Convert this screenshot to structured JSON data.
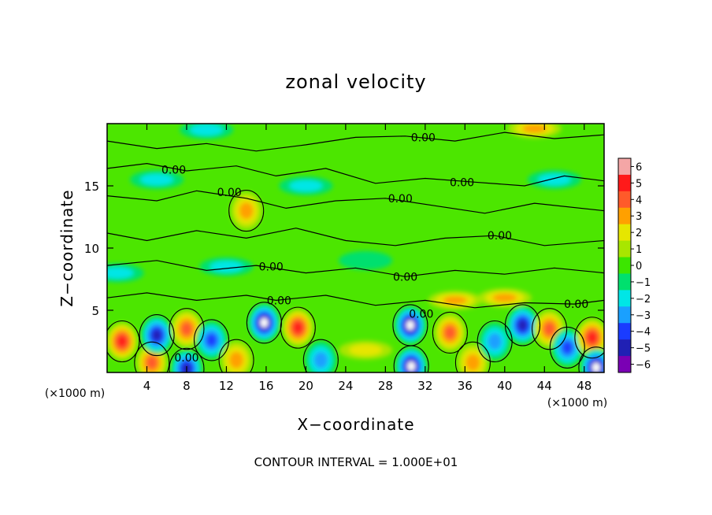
{
  "chart_data": {
    "type": "heatmap",
    "title": "zonal velocity",
    "xlabel": "X−coordinate",
    "ylabel": "Z−coordinate",
    "x_unit": "(×1000 m)",
    "z_unit": "(×1000 m)",
    "xlim": [
      0,
      50
    ],
    "ylim": [
      0,
      20
    ],
    "x_ticks": [
      4,
      8,
      12,
      16,
      20,
      24,
      28,
      32,
      36,
      40,
      44,
      48
    ],
    "y_ticks": [
      5,
      10,
      15
    ],
    "colorbar": {
      "ticks": [
        6,
        5,
        4,
        3,
        2,
        1,
        0,
        -1,
        -2,
        -3,
        -4,
        -5,
        -6
      ],
      "tick_labels": [
        "6",
        "5",
        "4",
        "3",
        "2",
        "1",
        "0",
        "−1",
        "−2",
        "−3",
        "−4",
        "−5",
        "−6"
      ],
      "colors": [
        "#f4a6a6",
        "#ff1a1a",
        "#ff5a2a",
        "#ffa000",
        "#e6e600",
        "#a8e600",
        "#3ce600",
        "#00e06e",
        "#00e6e6",
        "#1aa0ff",
        "#1a3cff",
        "#2020b4",
        "#7a00b4"
      ]
    },
    "contour_label": "0.00",
    "contour_interval_text": "CONTOUR INTERVAL = 1.000E+01",
    "contour_label_positions": [
      {
        "x": 31.8,
        "z": 18.9
      },
      {
        "x": 6.7,
        "z": 16.3
      },
      {
        "x": 35.7,
        "z": 15.3
      },
      {
        "x": 12.3,
        "z": 14.5
      },
      {
        "x": 29.5,
        "z": 14.0
      },
      {
        "x": 39.5,
        "z": 11.0
      },
      {
        "x": 16.5,
        "z": 8.5
      },
      {
        "x": 30.0,
        "z": 7.7
      },
      {
        "x": 17.3,
        "z": 5.8
      },
      {
        "x": 47.2,
        "z": 5.5
      },
      {
        "x": 31.6,
        "z": 4.7
      },
      {
        "x": 8.0,
        "z": 1.2
      }
    ],
    "features": [
      {
        "x": 1.5,
        "z": 2.5,
        "v": 4.5
      },
      {
        "x": 4.5,
        "z": 0.8,
        "v": 4
      },
      {
        "x": 5.0,
        "z": 3.0,
        "v": -5
      },
      {
        "x": 8.0,
        "z": 3.5,
        "v": 4
      },
      {
        "x": 10.5,
        "z": 2.6,
        "v": -4
      },
      {
        "x": 8.0,
        "z": 0.3,
        "v": -5
      },
      {
        "x": 13.0,
        "z": 1.0,
        "v": 3
      },
      {
        "x": 15.8,
        "z": 4.0,
        "v": -6
      },
      {
        "x": 19.2,
        "z": 3.6,
        "v": 4.5
      },
      {
        "x": 21.5,
        "z": 1.0,
        "v": -3
      },
      {
        "x": 26.0,
        "z": 1.8,
        "v": 2
      },
      {
        "x": 30.5,
        "z": 3.8,
        "v": -6
      },
      {
        "x": 34.5,
        "z": 3.2,
        "v": 4
      },
      {
        "x": 30.6,
        "z": 0.5,
        "v": -6
      },
      {
        "x": 36.8,
        "z": 0.8,
        "v": 3
      },
      {
        "x": 39.0,
        "z": 2.5,
        "v": -3
      },
      {
        "x": 41.8,
        "z": 3.8,
        "v": -5
      },
      {
        "x": 44.5,
        "z": 3.5,
        "v": 4
      },
      {
        "x": 46.3,
        "z": 2.0,
        "v": -4
      },
      {
        "x": 48.8,
        "z": 2.8,
        "v": 5
      },
      {
        "x": 49.2,
        "z": 0.4,
        "v": -6
      },
      {
        "x": 14.0,
        "z": 13.0,
        "v": 3
      },
      {
        "x": 12.0,
        "z": 8.5,
        "v": -2
      },
      {
        "x": 45.0,
        "z": 15.5,
        "v": -2
      },
      {
        "x": 5.0,
        "z": 15.5,
        "v": -1.5
      },
      {
        "x": 20.0,
        "z": 15.0,
        "v": -1.5
      },
      {
        "x": 26.0,
        "z": 9.0,
        "v": -1.3
      },
      {
        "x": 40.0,
        "z": 6.0,
        "v": 2.5
      },
      {
        "x": 35.0,
        "z": 5.8,
        "v": 2.5
      },
      {
        "x": 1.0,
        "z": 8.0,
        "v": -1.5
      },
      {
        "x": 10.0,
        "z": 19.5,
        "v": -1.5
      },
      {
        "x": 43.0,
        "z": 19.6,
        "v": 2.5
      }
    ]
  }
}
